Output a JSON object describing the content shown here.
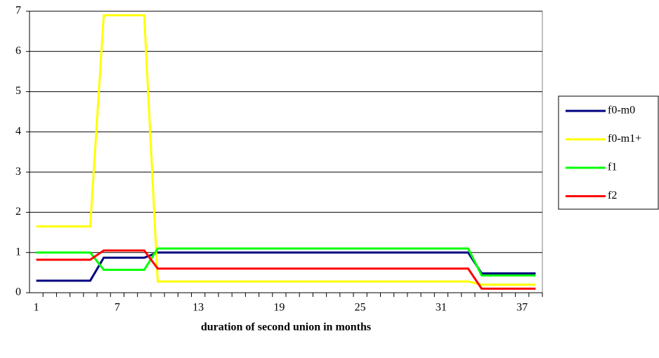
{
  "chart_data": {
    "type": "line",
    "x_label": "duration of second union in months",
    "categories": [
      1,
      null,
      null,
      null,
      null,
      null,
      7,
      null,
      null,
      null,
      null,
      null,
      13,
      null,
      null,
      null,
      null,
      null,
      19,
      null,
      null,
      null,
      null,
      null,
      25,
      null,
      null,
      null,
      null,
      null,
      31,
      null,
      null,
      null,
      null,
      null,
      37,
      null
    ],
    "series": [
      {
        "name": "f0-m0",
        "color": "#000080",
        "values": [
          0.3,
          0.3,
          0.3,
          0.3,
          0.3,
          0.87,
          0.87,
          0.87,
          0.87,
          1.0,
          1.0,
          1.0,
          1.0,
          1.0,
          1.0,
          1.0,
          1.0,
          1.0,
          1.0,
          1.0,
          1.0,
          1.0,
          1.0,
          1.0,
          1.0,
          1.0,
          1.0,
          1.0,
          1.0,
          1.0,
          1.0,
          1.0,
          1.0,
          0.48,
          0.48,
          0.48,
          0.48,
          0.48
        ]
      },
      {
        "name": "f0-m1+",
        "color": "#ffff00",
        "values": [
          1.65,
          1.65,
          1.65,
          1.65,
          1.65,
          6.9,
          6.9,
          6.9,
          6.9,
          0.28,
          0.28,
          0.28,
          0.28,
          0.28,
          0.28,
          0.28,
          0.28,
          0.28,
          0.28,
          0.28,
          0.28,
          0.28,
          0.28,
          0.28,
          0.28,
          0.28,
          0.28,
          0.28,
          0.28,
          0.28,
          0.28,
          0.28,
          0.28,
          0.2,
          0.2,
          0.2,
          0.2,
          0.2
        ]
      },
      {
        "name": "f1",
        "color": "#00ff00",
        "values": [
          1.0,
          1.0,
          1.0,
          1.0,
          1.0,
          0.57,
          0.57,
          0.57,
          0.57,
          1.1,
          1.1,
          1.1,
          1.1,
          1.1,
          1.1,
          1.1,
          1.1,
          1.1,
          1.1,
          1.1,
          1.1,
          1.1,
          1.1,
          1.1,
          1.1,
          1.1,
          1.1,
          1.1,
          1.1,
          1.1,
          1.1,
          1.1,
          1.1,
          0.43,
          0.43,
          0.43,
          0.43,
          0.43
        ]
      },
      {
        "name": "f2",
        "color": "#ff0000",
        "values": [
          0.82,
          0.82,
          0.82,
          0.82,
          0.82,
          1.05,
          1.05,
          1.05,
          1.05,
          0.6,
          0.6,
          0.6,
          0.6,
          0.6,
          0.6,
          0.6,
          0.6,
          0.6,
          0.6,
          0.6,
          0.6,
          0.6,
          0.6,
          0.6,
          0.6,
          0.6,
          0.6,
          0.6,
          0.6,
          0.6,
          0.6,
          0.6,
          0.6,
          0.1,
          0.1,
          0.1,
          0.1,
          0.1
        ]
      }
    ],
    "ylim": [
      0,
      7
    ],
    "yticks": [
      0,
      1,
      2,
      3,
      4,
      5,
      6,
      7
    ],
    "grid": true,
    "legend": "right"
  }
}
